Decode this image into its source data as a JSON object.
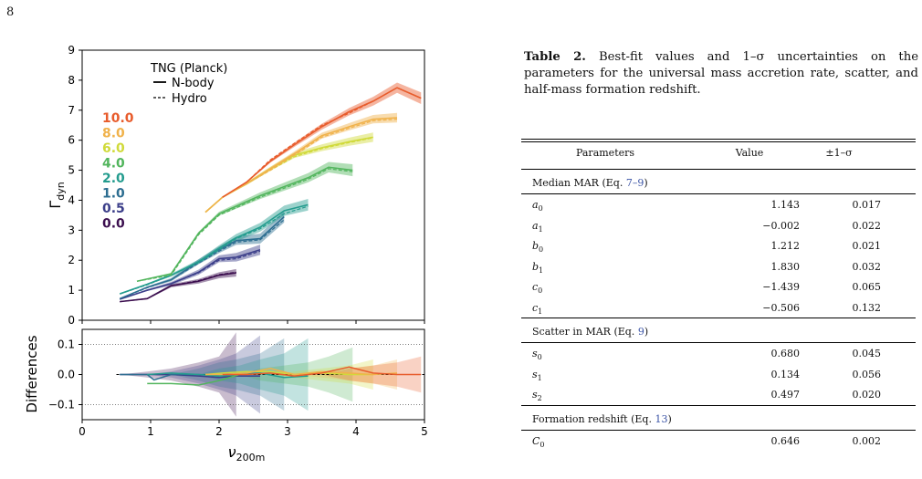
{
  "page_number": "8",
  "caption": {
    "label": "Table 2.",
    "text": "Best-fit values and 1–σ uncertainties on the parameters for the universal mass accretion rate, scatter, and half-mass formation redshift."
  },
  "table": {
    "headers": [
      "Parameters",
      "Value",
      "±1–σ"
    ],
    "sections": [
      {
        "title": "Median MAR (Eq. ",
        "ref": "7–9",
        "close": ")",
        "rows": [
          {
            "name": "a",
            "sub": "0",
            "value": "1.143",
            "err": "0.017"
          },
          {
            "name": "a",
            "sub": "1",
            "value": "−0.002",
            "err": "0.022"
          },
          {
            "name": "b",
            "sub": "0",
            "value": "1.212",
            "err": "0.021"
          },
          {
            "name": "b",
            "sub": "1",
            "value": "1.830",
            "err": "0.032"
          },
          {
            "name": "c",
            "sub": "0",
            "value": "−1.439",
            "err": "0.065"
          },
          {
            "name": "c",
            "sub": "1",
            "value": "−0.506",
            "err": "0.132"
          }
        ]
      },
      {
        "title": "Scatter in MAR (Eq. ",
        "ref": "9",
        "close": ")",
        "rows": [
          {
            "name": "s",
            "sub": "0",
            "value": "0.680",
            "err": "0.045"
          },
          {
            "name": "s",
            "sub": "1",
            "value": "0.134",
            "err": "0.056"
          },
          {
            "name": "s",
            "sub": "2",
            "value": "0.497",
            "err": "0.020"
          }
        ]
      },
      {
        "title": "Formation redshift (Eq. ",
        "ref": "13",
        "close": ")",
        "rows": [
          {
            "name": "C",
            "sub": "0",
            "value": "0.646",
            "err": "0.002"
          }
        ]
      }
    ]
  },
  "chart_data": [
    {
      "type": "line",
      "panel": "top",
      "xlim": [
        0,
        5
      ],
      "ylim": [
        0,
        9
      ],
      "yticks": [
        0,
        1,
        2,
        3,
        4,
        5,
        6,
        7,
        8,
        9
      ],
      "ylabel": "Γ",
      "ylabel_sub": "dyn",
      "legend": {
        "title": "TNG (Planck)",
        "entries": [
          "N-body",
          "Hydro"
        ],
        "placement": "top-left"
      },
      "redshift_labels": [
        "10.0",
        "8.0",
        "6.0",
        "4.0",
        "2.0",
        "1.0",
        "0.5",
        "0.0"
      ],
      "series": [
        {
          "name": "0.0",
          "color": "#3c0f4f",
          "x": [
            0.55,
            0.95,
            1.3,
            1.7,
            2.0,
            2.25
          ],
          "y": [
            0.62,
            0.72,
            1.15,
            1.3,
            1.5,
            1.58
          ],
          "hydro_y": [
            0.62,
            0.72,
            1.15,
            1.32,
            1.52,
            1.6
          ],
          "band": 0.15
        },
        {
          "name": "0.5",
          "color": "#3c3f8a",
          "x": [
            0.55,
            0.95,
            1.3,
            1.7,
            2.0,
            2.25,
            2.6
          ],
          "y": [
            0.7,
            1.0,
            1.22,
            1.6,
            2.05,
            2.1,
            2.35
          ],
          "hydro_y": [
            0.7,
            1.0,
            1.22,
            1.58,
            2.0,
            2.05,
            2.3
          ],
          "band": 0.2
        },
        {
          "name": "1.0",
          "color": "#2d6e91",
          "x": [
            0.55,
            0.95,
            1.3,
            1.7,
            2.0,
            2.25,
            2.6,
            2.95
          ],
          "y": [
            0.72,
            1.1,
            1.35,
            1.95,
            2.35,
            2.65,
            2.72,
            3.45
          ],
          "hydro_y": [
            0.72,
            1.08,
            1.35,
            1.9,
            2.3,
            2.6,
            2.68,
            3.35
          ],
          "band": 0.22
        },
        {
          "name": "2.0",
          "color": "#249c8e",
          "x": [
            0.55,
            0.95,
            1.3,
            1.7,
            2.0,
            2.25,
            2.6,
            2.95,
            3.3
          ],
          "y": [
            0.88,
            1.2,
            1.5,
            1.95,
            2.4,
            2.75,
            3.1,
            3.65,
            3.85
          ],
          "hydro_y": [
            0.88,
            1.18,
            1.5,
            1.92,
            2.35,
            2.72,
            3.05,
            3.55,
            3.8
          ],
          "band": 0.22
        },
        {
          "name": "4.0",
          "color": "#52b55d",
          "x": [
            0.8,
            1.3,
            1.7,
            2.0,
            2.3,
            2.6,
            2.95,
            3.3,
            3.6,
            3.95
          ],
          "y": [
            1.3,
            1.55,
            2.9,
            3.55,
            3.85,
            4.15,
            4.45,
            4.75,
            5.1,
            5.0
          ],
          "hydro_y": [
            1.3,
            1.5,
            2.85,
            3.5,
            3.8,
            4.1,
            4.4,
            4.7,
            5.05,
            4.95
          ],
          "band": 0.22
        },
        {
          "name": "6.0",
          "color": "#d0da3a",
          "x": [
            1.8,
            2.05,
            2.4,
            2.75,
            3.1,
            3.5,
            3.9,
            4.25
          ],
          "y": [
            3.6,
            4.1,
            4.55,
            5.05,
            5.5,
            5.75,
            5.95,
            6.1
          ],
          "hydro_y": [
            3.6,
            4.1,
            4.55,
            5.0,
            5.45,
            5.72,
            5.92,
            6.08
          ],
          "band": 0.18
        },
        {
          "name": "8.0",
          "color": "#f0b24b",
          "x": [
            1.8,
            2.05,
            2.4,
            2.75,
            3.1,
            3.5,
            3.9,
            4.25,
            4.6
          ],
          "y": [
            3.6,
            4.1,
            4.55,
            5.05,
            5.55,
            6.15,
            6.45,
            6.7,
            6.75
          ],
          "hydro_y": [
            3.6,
            4.1,
            4.55,
            5.0,
            5.5,
            6.1,
            6.4,
            6.65,
            6.7
          ],
          "band": 0.18
        },
        {
          "name": "10.0",
          "color": "#e85c2c",
          "x": [
            2.05,
            2.4,
            2.75,
            3.1,
            3.5,
            3.9,
            4.25,
            4.6,
            4.95
          ],
          "y": [
            4.1,
            4.6,
            5.3,
            5.85,
            6.45,
            6.95,
            7.3,
            7.75,
            7.4
          ],
          "hydro_y": [
            4.1,
            4.6,
            5.35,
            5.9,
            6.5,
            6.9,
            7.3,
            7.75,
            7.4
          ],
          "band": 0.22
        }
      ]
    },
    {
      "type": "area",
      "panel": "bottom",
      "xlim": [
        0,
        5
      ],
      "ylim": [
        -0.15,
        0.15
      ],
      "yticks": [
        -0.1,
        0.0,
        0.1
      ],
      "ytick_labels": [
        "−0.1",
        "0.0",
        "0.1"
      ],
      "xticks": [
        0,
        1,
        2,
        3,
        4,
        5
      ],
      "xlabel": "ν",
      "xlabel_sub": "200m",
      "ylabel": "Differences",
      "grid": "dotted at ±0.1",
      "bands": [
        {
          "color": "#3c0f4f",
          "x": [
            0.55,
            0.95,
            1.3,
            1.7,
            2.0,
            2.25
          ],
          "half": [
            0.0,
            0.01,
            0.02,
            0.04,
            0.06,
            0.14
          ]
        },
        {
          "color": "#3c3f8a",
          "x": [
            0.95,
            1.3,
            1.7,
            2.0,
            2.25,
            2.6
          ],
          "half": [
            0.0,
            0.01,
            0.03,
            0.05,
            0.07,
            0.13
          ]
        },
        {
          "color": "#2d6e91",
          "x": [
            1.3,
            1.7,
            2.0,
            2.25,
            2.6,
            2.95
          ],
          "half": [
            0.0,
            0.02,
            0.04,
            0.05,
            0.07,
            0.12
          ]
        },
        {
          "color": "#249c8e",
          "x": [
            1.7,
            2.0,
            2.3,
            2.6,
            2.95,
            3.3
          ],
          "half": [
            0.0,
            0.02,
            0.03,
            0.05,
            0.07,
            0.12
          ]
        },
        {
          "color": "#52b55d",
          "x": [
            2.3,
            2.6,
            2.95,
            3.3,
            3.6,
            3.95
          ],
          "half": [
            0.0,
            0.02,
            0.03,
            0.04,
            0.06,
            0.09
          ]
        },
        {
          "color": "#d0da3a",
          "x": [
            2.75,
            3.1,
            3.5,
            3.9,
            4.25
          ],
          "half": [
            0.0,
            0.01,
            0.02,
            0.03,
            0.05
          ]
        },
        {
          "color": "#f0b24b",
          "x": [
            3.1,
            3.5,
            3.9,
            4.25,
            4.6
          ],
          "half": [
            0.0,
            0.01,
            0.02,
            0.03,
            0.05
          ]
        },
        {
          "color": "#e85c2c",
          "x": [
            3.5,
            3.9,
            4.25,
            4.6,
            4.95
          ],
          "half": [
            0.0,
            0.02,
            0.03,
            0.04,
            0.06
          ]
        }
      ],
      "lines": [
        {
          "color": "#3c3f8a",
          "x": [
            0.55,
            0.95,
            1.3,
            1.7,
            2.0,
            2.25,
            2.6
          ],
          "y": [
            0.0,
            0.0,
            0.0,
            -0.005,
            -0.01,
            -0.005,
            -0.005
          ]
        },
        {
          "color": "#2d6e91",
          "x": [
            0.55,
            0.95,
            1.05,
            1.3,
            1.7,
            2.0
          ],
          "y": [
            0.0,
            0.0,
            -0.018,
            0.0,
            0.0,
            -0.005
          ]
        },
        {
          "color": "#249c8e",
          "x": [
            0.95,
            1.3,
            1.7,
            2.0,
            2.3,
            2.6,
            2.95,
            3.3
          ],
          "y": [
            0.0,
            0.005,
            0.0,
            -0.005,
            0.0,
            0.005,
            -0.01,
            -0.005
          ]
        },
        {
          "color": "#52b55d",
          "x": [
            0.95,
            1.3,
            1.7,
            2.0,
            2.3
          ],
          "y": [
            -0.03,
            -0.03,
            -0.035,
            -0.02,
            0.0
          ]
        },
        {
          "color": "#d0da3a",
          "x": [
            1.8,
            2.05,
            2.4,
            2.75,
            3.1,
            3.5,
            3.9,
            4.25
          ],
          "y": [
            0.0,
            0.005,
            0.01,
            0.01,
            0.0,
            0.005,
            0.0,
            0.0
          ]
        },
        {
          "color": "#f0b24b",
          "x": [
            1.8,
            2.05,
            2.4,
            2.75,
            3.1,
            3.5,
            3.9,
            4.25,
            4.6
          ],
          "y": [
            0.0,
            0.0,
            0.005,
            0.02,
            0.0,
            0.01,
            0.005,
            0.0,
            0.005
          ]
        },
        {
          "color": "#e85c2c",
          "x": [
            2.05,
            2.4,
            2.75,
            3.1,
            3.5,
            3.9,
            4.25,
            4.6,
            4.95
          ],
          "y": [
            0.0,
            0.0,
            0.005,
            -0.005,
            0.005,
            0.025,
            0.005,
            0.0,
            0.0
          ]
        }
      ]
    }
  ]
}
